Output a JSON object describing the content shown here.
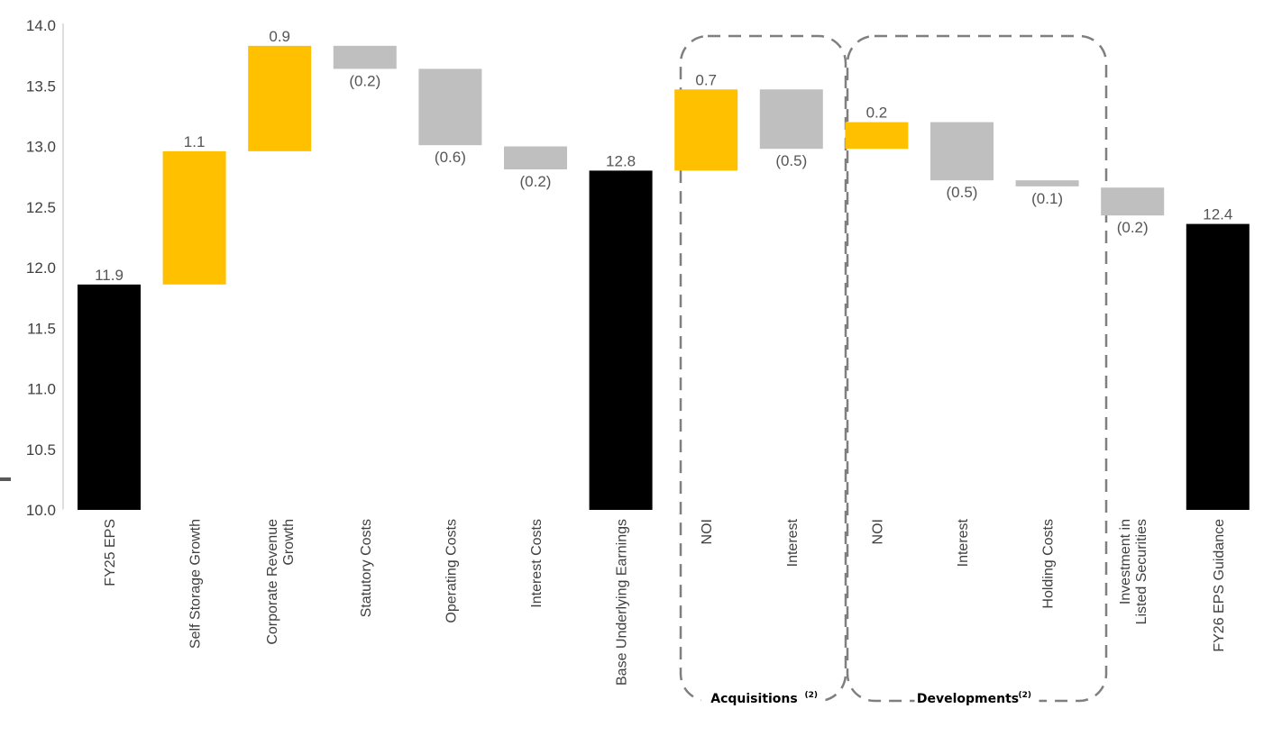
{
  "chart_data": {
    "type": "bar",
    "subtype": "waterfall",
    "title": "",
    "xlabel": "",
    "ylabel": "",
    "ylim": [
      10.0,
      14.0
    ],
    "yticks": [
      "10.0",
      "10.5",
      "11.0",
      "11.5",
      "12.0",
      "12.5",
      "13.0",
      "13.5",
      "14.0"
    ],
    "grid": false,
    "legend": "none",
    "colors": {
      "total": "#000000",
      "increase": "#FFC000",
      "decrease": "#BFBFBF",
      "group_border": "#7F7F7F"
    },
    "bars": [
      {
        "category": "FY25 EPS",
        "kind": "total",
        "start": 10.0,
        "end": 11.86,
        "label": "11.9"
      },
      {
        "category": "Self Storage Growth",
        "kind": "increase",
        "start": 11.86,
        "end": 12.96,
        "label": "1.1"
      },
      {
        "category": "Corporate Revenue Growth",
        "kind": "increase",
        "start": 12.96,
        "end": 13.83,
        "label": "0.9"
      },
      {
        "category": "Statutory Costs",
        "kind": "decrease",
        "start": 13.83,
        "end": 13.64,
        "label": "(0.2)"
      },
      {
        "category": "Operating Costs",
        "kind": "decrease",
        "start": 13.64,
        "end": 13.01,
        "label": "(0.6)"
      },
      {
        "category": "Interest Costs",
        "kind": "decrease",
        "start": 13.0,
        "end": 12.81,
        "label": "(0.2)"
      },
      {
        "category": "Base Underlying Earnings",
        "kind": "total",
        "start": 10.0,
        "end": 12.8,
        "label": "12.8"
      },
      {
        "category": "NOI",
        "kind": "increase",
        "start": 12.8,
        "end": 13.47,
        "label": "0.7"
      },
      {
        "category": "Interest",
        "kind": "decrease",
        "start": 13.47,
        "end": 12.98,
        "label": "(0.5)"
      },
      {
        "category": "NOI",
        "kind": "increase",
        "start": 12.98,
        "end": 13.2,
        "label": "0.2"
      },
      {
        "category": "Interest",
        "kind": "decrease",
        "start": 13.2,
        "end": 12.72,
        "label": "(0.5)"
      },
      {
        "category": "Holding Costs",
        "kind": "decrease",
        "start": 12.72,
        "end": 12.67,
        "label": "(0.1)"
      },
      {
        "category": "Investment in Listed Securities",
        "kind": "decrease",
        "start": 12.66,
        "end": 12.43,
        "label": "(0.2)"
      },
      {
        "category": "FY26 EPS Guidance",
        "kind": "total",
        "start": 10.0,
        "end": 12.36,
        "label": "12.4"
      }
    ],
    "category_label_lines": [
      [
        "FY25 EPS"
      ],
      [
        "Self Storage Growth"
      ],
      [
        "Corporate Revenue",
        "Growth"
      ],
      [
        "Statutory Costs"
      ],
      [
        "Operating Costs"
      ],
      [
        "Interest Costs"
      ],
      [
        "Base Underlying Earnings"
      ],
      [
        "NOI"
      ],
      [
        "Interest"
      ],
      [
        "NOI"
      ],
      [
        "Interest"
      ],
      [
        "Holding Costs"
      ],
      [
        "Investment in",
        "Listed Securities"
      ],
      [
        "FY26 EPS Guidance"
      ]
    ],
    "groups": [
      {
        "name": "Acquisitions",
        "superscript": "(2)",
        "categories": [
          7,
          8
        ]
      },
      {
        "name": "Developments",
        "superscript": "(2)",
        "categories": [
          9,
          11
        ]
      }
    ]
  }
}
